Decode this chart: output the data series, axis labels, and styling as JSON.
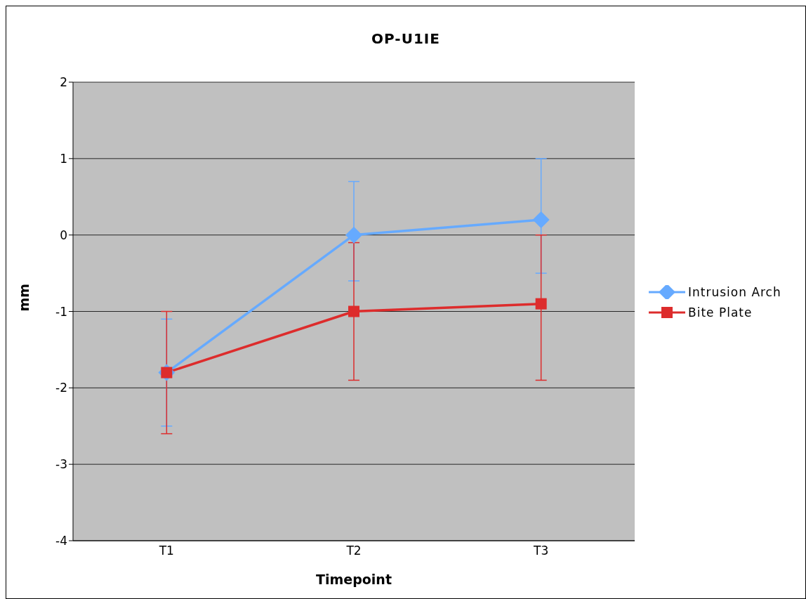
{
  "chart_data": {
    "type": "line",
    "title": "OP-U1IE",
    "xlabel": "Timepoint",
    "ylabel": "mm",
    "categories": [
      "T1",
      "T2",
      "T3"
    ],
    "series": [
      {
        "name": "Intrusion Arch",
        "color": "#66aaff",
        "marker": "diamond",
        "values": [
          -1.8,
          0,
          0.2
        ],
        "errors": [
          [
            -2.5,
            -1.1
          ],
          [
            -0.6,
            0.7
          ],
          [
            -0.5,
            1.0
          ]
        ]
      },
      {
        "name": "Bite Plate",
        "color": "#dd2c2c",
        "marker": "square",
        "values": [
          -1.8,
          -1.0,
          -0.9
        ],
        "errors": [
          [
            -2.6,
            -1.0
          ],
          [
            -1.9,
            -0.1
          ],
          [
            -1.9,
            0
          ]
        ]
      }
    ],
    "ylim": [
      -4,
      2
    ],
    "yticks": [
      -4,
      -3,
      -2,
      -1,
      0,
      1,
      2
    ],
    "grid": "y",
    "legend": "right",
    "line_style": "solid"
  }
}
